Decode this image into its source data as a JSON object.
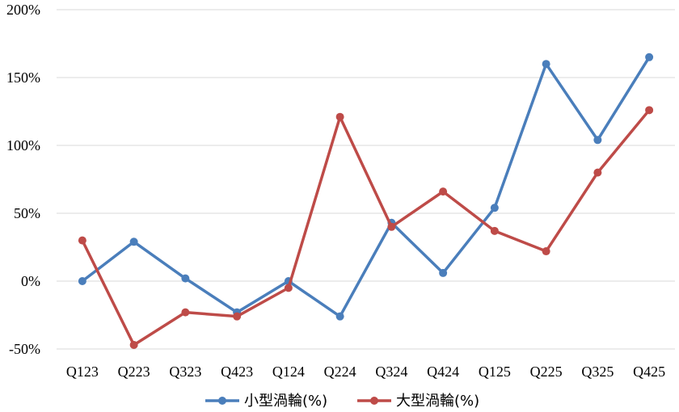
{
  "chart_data": {
    "type": "line",
    "categories": [
      "Q123",
      "Q223",
      "Q323",
      "Q423",
      "Q124",
      "Q224",
      "Q324",
      "Q424",
      "Q125",
      "Q225",
      "Q325",
      "Q425"
    ],
    "series": [
      {
        "name": "小型渦輪(%)",
        "color": "#4a7ebb",
        "values": [
          0,
          29,
          2,
          -23,
          0,
          -26,
          43,
          6,
          54,
          160,
          104,
          165
        ]
      },
      {
        "name": "大型渦輪(%)",
        "color": "#be4b48",
        "values": [
          30,
          -47,
          -23,
          -26,
          -5,
          121,
          40,
          66,
          37,
          22,
          80,
          126
        ]
      }
    ],
    "ylim": [
      -50,
      200
    ],
    "yticks": [
      -50,
      0,
      50,
      100,
      150,
      200
    ],
    "ytick_labels": [
      "-50%",
      "0%",
      "50%",
      "100%",
      "150%",
      "200%"
    ],
    "grid": true,
    "legend": "bottom"
  }
}
